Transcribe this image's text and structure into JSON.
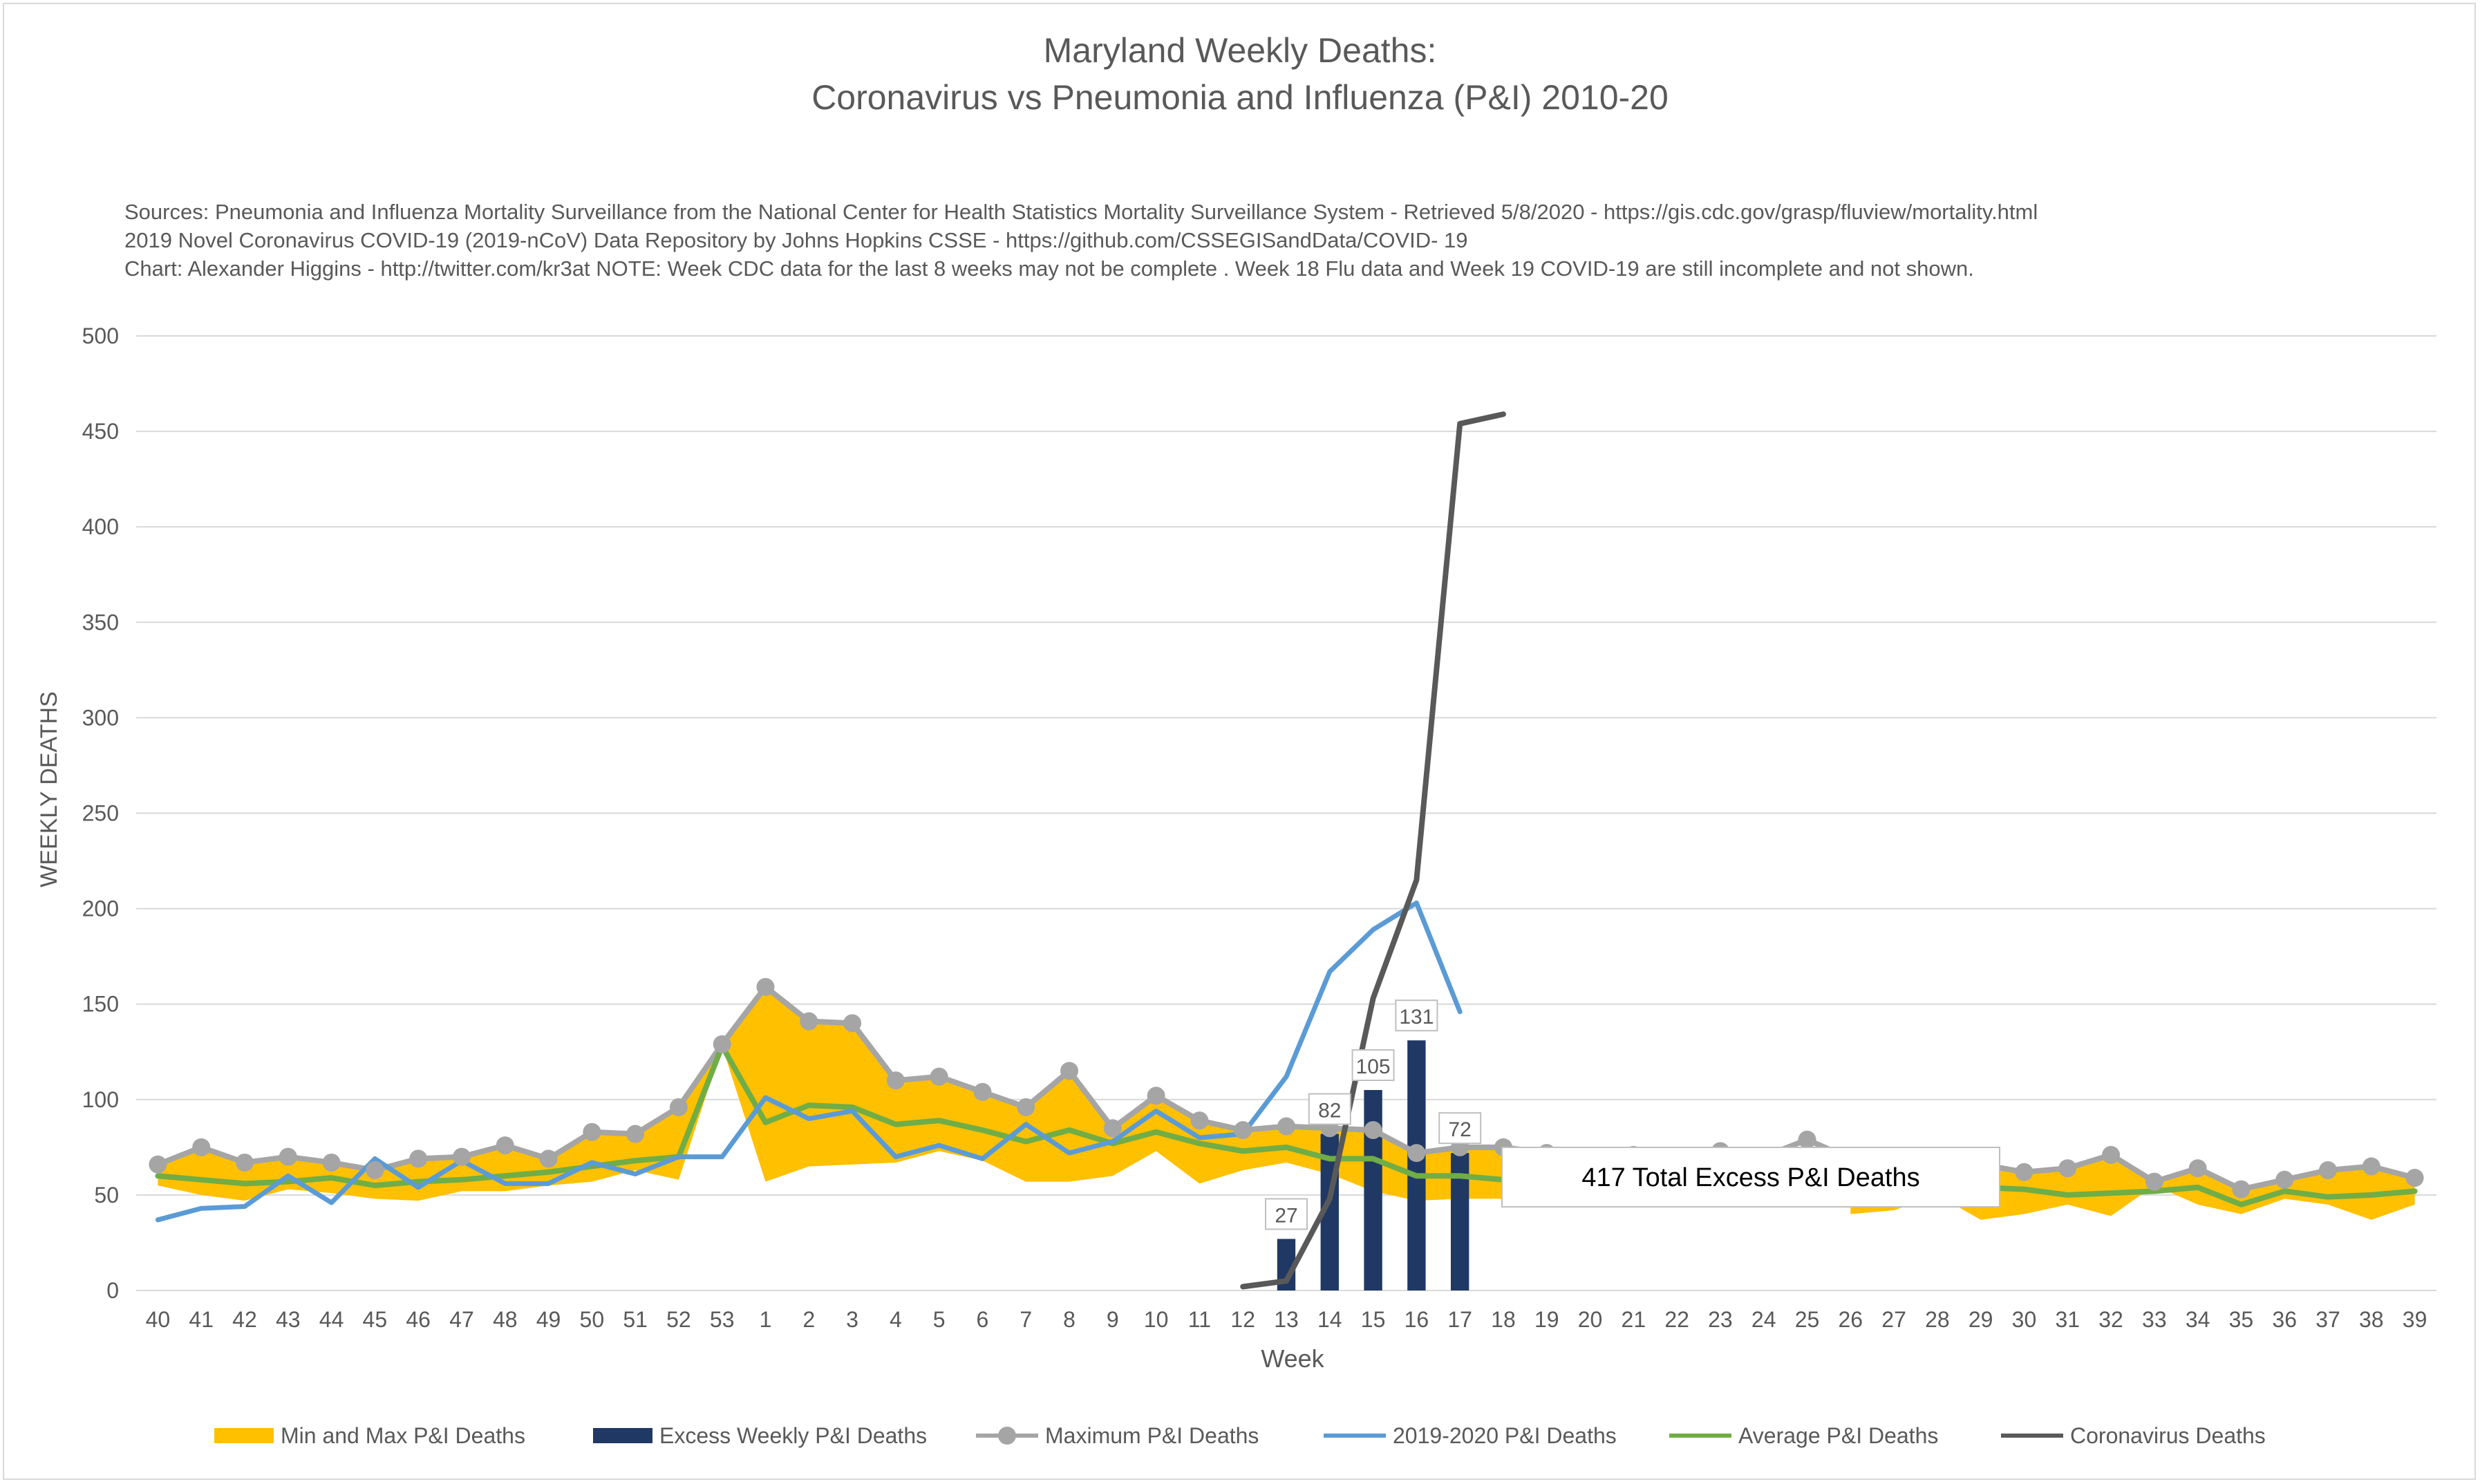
{
  "title_line1": "Maryland Weekly Deaths:",
  "title_line2": "Coronavirus vs Pneumonia and Influenza (P&I) 2010-20",
  "sources": [
    "Sources: Pneumonia and Influenza Mortality Surveillance from the National Center for Health Statistics Mortality Surveillance System - Retrieved 5/8/2020 - https://gis.cdc.gov/grasp/fluview/mortality.html",
    "2019 Novel Coronavirus COVID-19 (2019-nCoV) Data Repository by Johns Hopkins CSSE - https://github.com/CSSEGISandData/COVID- 19",
    "Chart: Alexander Higgins - http://twitter.com/kr3at   NOTE: Week CDC data for the last 8 weeks may not be complete . Week 18 Flu data and Week 19 COVID-19 are still incomplete and not shown."
  ],
  "annotation": "417 Total Excess P&I Deaths",
  "colors": {
    "band": "#ffc000",
    "excess": "#203864",
    "maximum": "#a5a5a5",
    "current": "#5b9bd5",
    "average": "#70ad47",
    "coronavirus": "#595959",
    "grid": "#d9d9d9",
    "text": "#595959"
  },
  "chart_data": {
    "type": "line",
    "title": "Maryland Weekly Deaths: Coronavirus vs Pneumonia and Influenza (P&I) 2010-20",
    "xlabel": "Week",
    "ylabel": "WEEKLY DEATHS",
    "ylim": [
      0,
      500
    ],
    "yticks": [
      0,
      50,
      100,
      150,
      200,
      250,
      300,
      350,
      400,
      450,
      500
    ],
    "grid": true,
    "legend_position": "bottom",
    "categories": [
      "40",
      "41",
      "42",
      "43",
      "44",
      "45",
      "46",
      "47",
      "48",
      "49",
      "50",
      "51",
      "52",
      "53",
      "1",
      "2",
      "3",
      "4",
      "5",
      "6",
      "7",
      "8",
      "9",
      "10",
      "11",
      "12",
      "13",
      "14",
      "15",
      "16",
      "17",
      "18",
      "19",
      "20",
      "21",
      "22",
      "23",
      "24",
      "25",
      "26",
      "27",
      "28",
      "29",
      "30",
      "31",
      "32",
      "33",
      "34",
      "35",
      "36",
      "37",
      "38",
      "39"
    ],
    "series": [
      {
        "name": "Min and Max P&I Deaths",
        "type": "band",
        "min": [
          55,
          50,
          47,
          53,
          51,
          48,
          47,
          52,
          52,
          55,
          57,
          63,
          58,
          128,
          57,
          65,
          66,
          67,
          73,
          68,
          57,
          57,
          60,
          73,
          56,
          63,
          67,
          61,
          52,
          47,
          48,
          48,
          null,
          null,
          null,
          null,
          null,
          null,
          null,
          40,
          42,
          50,
          37,
          40,
          45,
          39,
          55,
          45,
          40,
          48,
          45,
          37,
          45
        ],
        "max": [
          66,
          75,
          67,
          70,
          67,
          63,
          69,
          70,
          76,
          69,
          83,
          82,
          96,
          129,
          159,
          141,
          140,
          110,
          112,
          104,
          96,
          115,
          85,
          102,
          89,
          84,
          86,
          85,
          84,
          72,
          75,
          75,
          null,
          null,
          null,
          null,
          null,
          null,
          null,
          69,
          66,
          60,
          66,
          62,
          64,
          71,
          57,
          64,
          53,
          58,
          63,
          65,
          59
        ]
      },
      {
        "name": "Excess Weekly P&I Deaths",
        "type": "bar",
        "values": [
          null,
          null,
          null,
          null,
          null,
          null,
          null,
          null,
          null,
          null,
          null,
          null,
          null,
          null,
          null,
          null,
          null,
          null,
          null,
          null,
          null,
          null,
          null,
          null,
          null,
          null,
          27,
          82,
          105,
          131,
          72,
          null,
          null,
          null,
          null,
          null,
          null,
          null,
          null,
          null,
          null,
          null,
          null,
          null,
          null,
          null,
          null,
          null,
          null,
          null,
          null,
          null,
          null
        ]
      },
      {
        "name": "Maximum P&I Deaths",
        "type": "line",
        "markers": true,
        "values": [
          66,
          75,
          67,
          70,
          67,
          63,
          69,
          70,
          76,
          69,
          83,
          82,
          96,
          129,
          159,
          141,
          140,
          110,
          112,
          104,
          96,
          115,
          85,
          102,
          89,
          84,
          86,
          85,
          84,
          72,
          75,
          75,
          72,
          68,
          71,
          69,
          73,
          70,
          79,
          69,
          66,
          60,
          66,
          62,
          64,
          71,
          57,
          64,
          53,
          58,
          63,
          65,
          59
        ]
      },
      {
        "name": "2019-2020 P&I Deaths",
        "type": "line",
        "values": [
          37,
          43,
          44,
          60,
          46,
          69,
          54,
          68,
          56,
          56,
          67,
          61,
          70,
          70,
          101,
          90,
          94,
          70,
          76,
          69,
          87,
          72,
          78,
          94,
          80,
          82,
          112,
          167,
          189,
          203,
          146,
          null,
          null,
          null,
          null,
          null,
          null,
          null,
          null,
          null,
          null,
          null,
          null,
          null,
          null,
          null,
          null,
          null,
          null,
          null,
          null,
          null,
          null
        ]
      },
      {
        "name": "Average P&I Deaths",
        "type": "line",
        "values": [
          60,
          58,
          56,
          57,
          59,
          55,
          57,
          58,
          60,
          62,
          65,
          68,
          70,
          128,
          88,
          97,
          96,
          87,
          89,
          84,
          78,
          84,
          77,
          83,
          77,
          73,
          75,
          69,
          69,
          60,
          60,
          58,
          57,
          56,
          55,
          56,
          57,
          57,
          56,
          55,
          55,
          55,
          54,
          53,
          50,
          51,
          52,
          54,
          45,
          52,
          49,
          50,
          52
        ]
      },
      {
        "name": "Coronavirus Deaths",
        "type": "line",
        "values": [
          null,
          null,
          null,
          null,
          null,
          null,
          null,
          null,
          null,
          null,
          null,
          null,
          null,
          null,
          null,
          null,
          null,
          null,
          null,
          null,
          null,
          null,
          null,
          null,
          null,
          2,
          5,
          48,
          153,
          215,
          454,
          459,
          null,
          null,
          null,
          null,
          null,
          null,
          null,
          null,
          null,
          null,
          null,
          null,
          null,
          null,
          null,
          null,
          null,
          null,
          null,
          null,
          null
        ]
      }
    ]
  }
}
